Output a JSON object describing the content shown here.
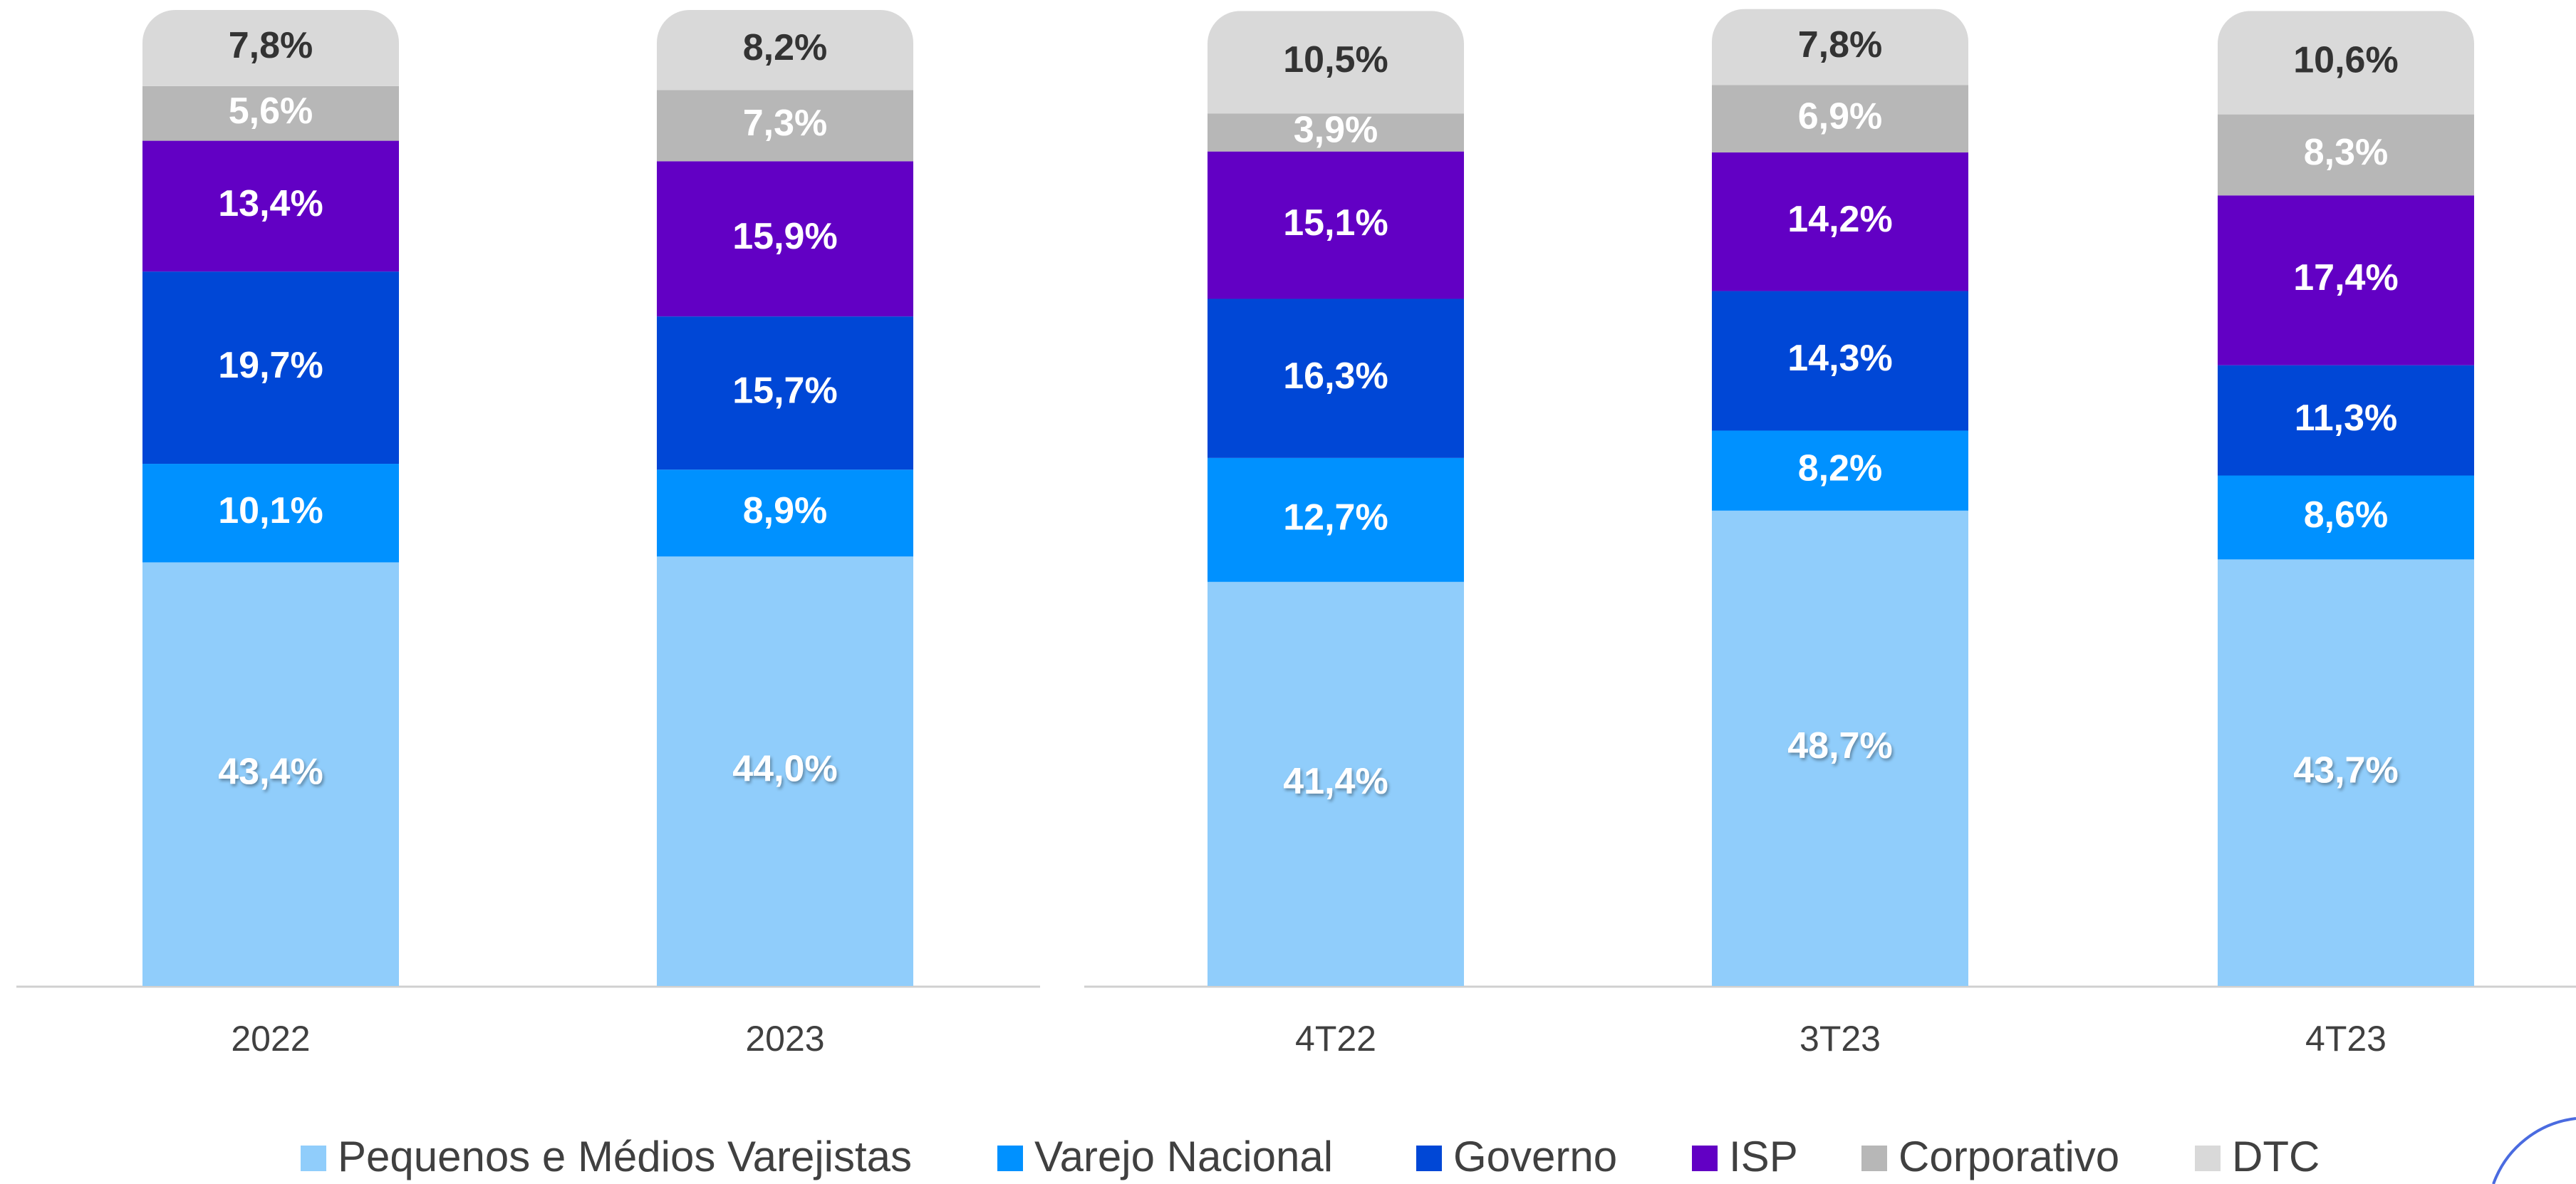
{
  "chart_data": {
    "type": "stacked_bar",
    "categories": [
      "2022",
      "2023",
      "4T22",
      "3T23",
      "4T23"
    ],
    "ylim": [
      0,
      100
    ],
    "series": [
      {
        "name": "Pequenos e Médios Varejistas",
        "color": "#90cdfb",
        "label_color": "#ffffff",
        "values": [
          43.4,
          44.0,
          41.4,
          48.7,
          43.7
        ],
        "value_labels": [
          "43,4%",
          "44,0%",
          "41,4%",
          "48,7%",
          "43,7%"
        ]
      },
      {
        "name": "Varejo Nacional",
        "color": "#0091ff",
        "label_color": "#ffffff",
        "values": [
          10.1,
          8.9,
          12.7,
          8.2,
          8.6
        ],
        "value_labels": [
          "10,1%",
          "8,9%",
          "12,7%",
          "8,2%",
          "8,6%"
        ]
      },
      {
        "name": "Governo",
        "color": "#0047d6",
        "label_color": "#ffffff",
        "values": [
          19.7,
          15.7,
          16.3,
          14.3,
          11.3
        ],
        "value_labels": [
          "19,7%",
          "15,7%",
          "16,3%",
          "14,3%",
          "11,3%"
        ]
      },
      {
        "name": "ISP",
        "color": "#6200c4",
        "label_color": "#ffffff",
        "values": [
          13.4,
          15.9,
          15.1,
          14.2,
          17.4
        ],
        "value_labels": [
          "13,4%",
          "15,9%",
          "15,1%",
          "14,2%",
          "17,4%"
        ]
      },
      {
        "name": "Corporativo",
        "color": "#b7b7b7",
        "label_color": "#ffffff",
        "values": [
          5.6,
          7.3,
          3.9,
          6.9,
          8.3
        ],
        "value_labels": [
          "5,6%",
          "7,3%",
          "3,9%",
          "6,9%",
          "8,3%"
        ]
      },
      {
        "name": "DTC",
        "color": "#d9d9d9",
        "label_color": "#333333",
        "values": [
          7.8,
          8.2,
          10.5,
          7.8,
          10.6
        ],
        "value_labels": [
          "7,8%",
          "8,2%",
          "10,5%",
          "7,8%",
          "10,6%"
        ]
      }
    ],
    "legend": "bottom"
  }
}
